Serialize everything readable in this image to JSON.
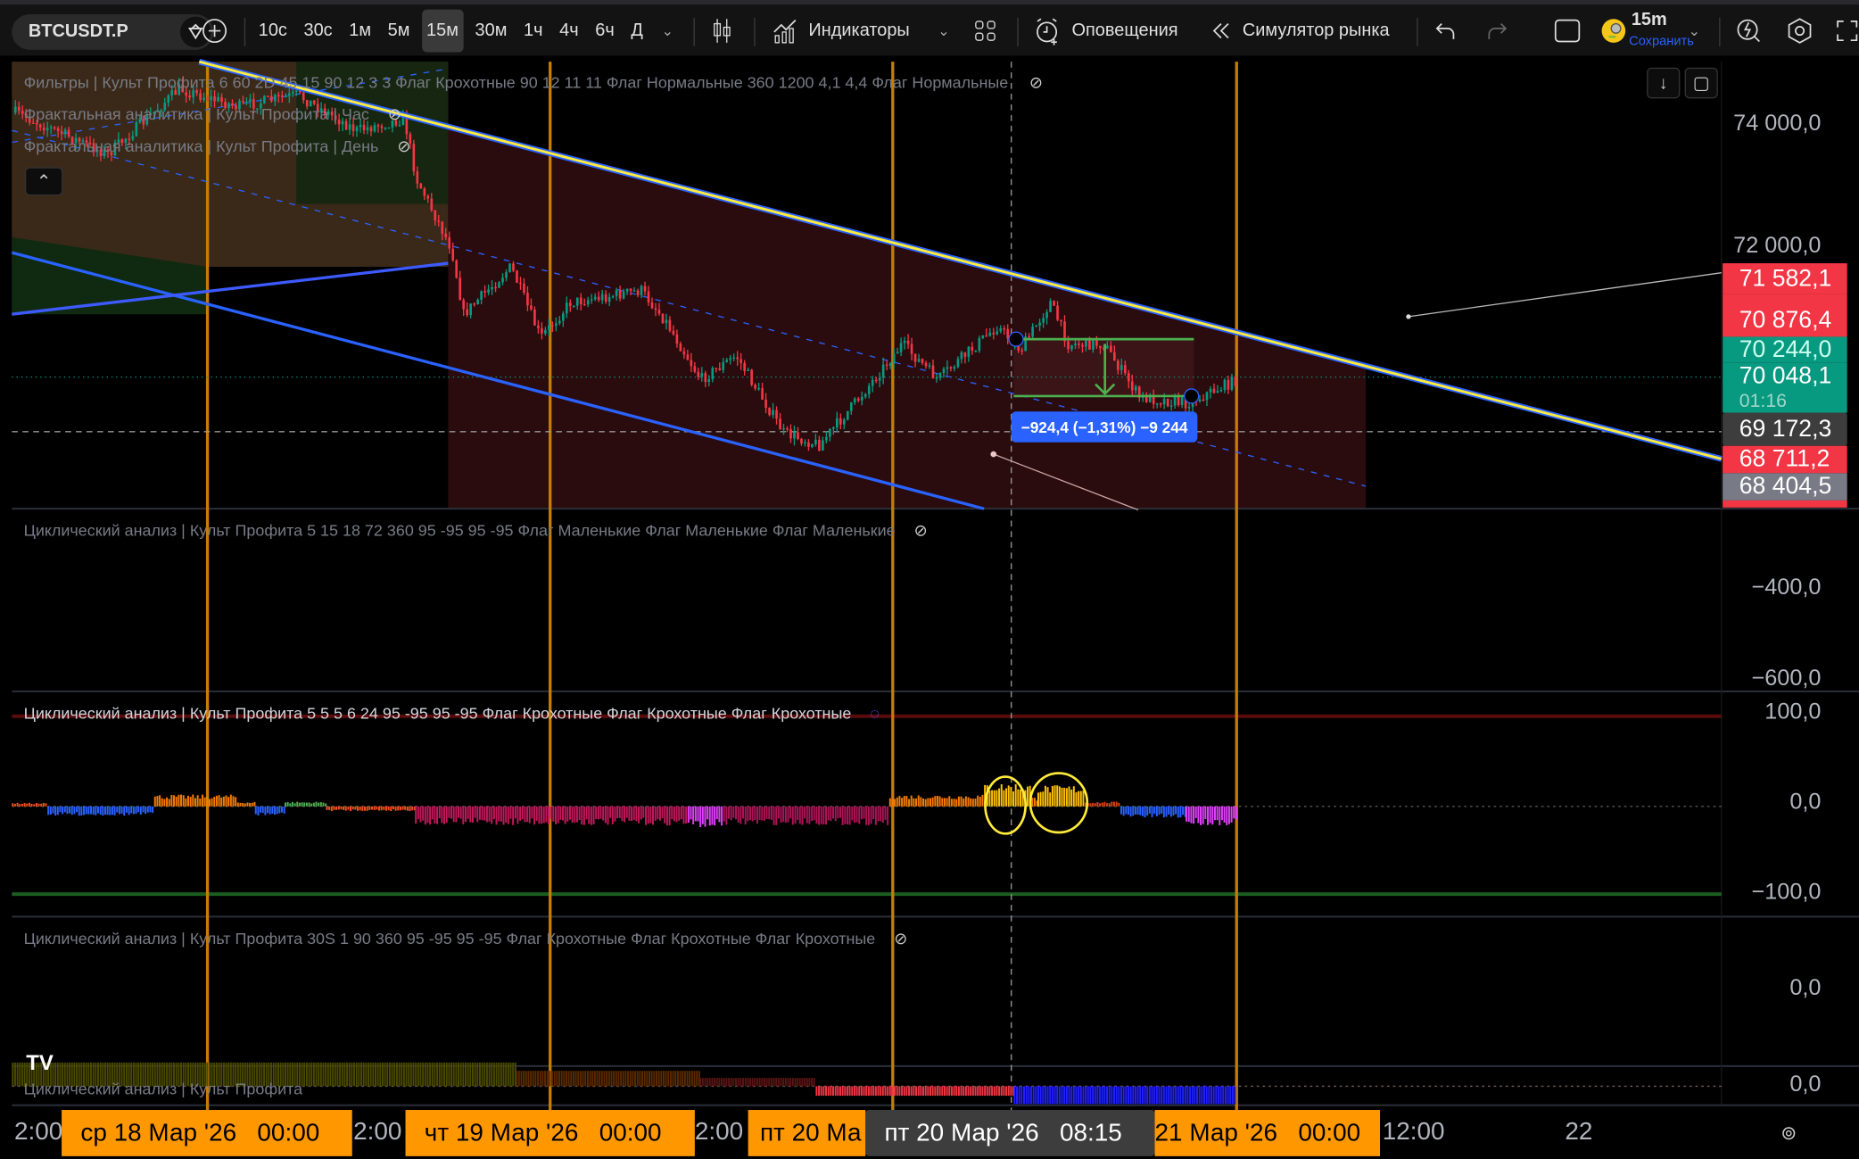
{
  "toolbar": {
    "symbol": "BTCUSDT.P",
    "timeframes": [
      "10с",
      "30с",
      "1м",
      "5м",
      "15м",
      "30м",
      "1ч",
      "4ч",
      "6ч",
      "Д"
    ],
    "active_timeframe": "15м",
    "indicators_label": "Индикаторы",
    "alerts_label": "Оповещения",
    "simulator_label": "Симулятор рынка",
    "layout_name": "15m",
    "save_label": "Сохранить"
  },
  "legends": {
    "main1": "Фильтры | Культ Профита 6 60 2D 45 15 90 12 3 3 Флаг Крохотные 90 12 11 11 Флаг Нормальные 360 1200 4,1 4,4 Флаг Нормальные",
    "main2": "Фрактальная аналитика | Культ Профита | Час",
    "main3": "Фрактальная аналитика | Культ Профита | День",
    "pane2": "Циклический анализ | Культ Профита 5 15 18 72 360 95 -95 95 -95 Флаг Маленькие Флаг Маленькие Флаг Маленькие",
    "pane3": "Циклический анализ | Культ Профита 5 5 5 6 24 95 -95 95 -95 Флаг Крохотные Флаг Крохотные Флаг Крохотные",
    "pane4": "Циклический анализ | Культ Профита 30S 1 90 360 95 -95 95 -95 Флаг Крохотные Флаг Крохотные Флаг Крохотные",
    "pane5": "Циклический анализ | Культ Профита"
  },
  "price_axis": {
    "ticks": [
      "74 000,0",
      "72 000,0"
    ],
    "labels": [
      {
        "value": "71 582,1",
        "color": "#f23645"
      },
      {
        "value": "70 876,4",
        "color": "#f23645"
      },
      {
        "value": "70 244,0",
        "color": "#089981"
      },
      {
        "value": "70 048,1",
        "color": "#089981",
        "countdown": "01:16"
      },
      {
        "value": "69 172,3",
        "color": "#3d3d3d"
      },
      {
        "value": "68 711,2",
        "color": "#f23645"
      },
      {
        "value": "68 404,5",
        "color": "#787b86"
      }
    ]
  },
  "measure_label": "−924,4 (−1,31%) −9 244",
  "pane2_axis": [
    "−400,0",
    "−600,0"
  ],
  "pane3_axis": [
    "100,0",
    "0,0",
    "−100,0"
  ],
  "pane4_axis": [
    "0,0"
  ],
  "pane5_axis": [
    "0,0"
  ],
  "time_axis": {
    "plain": [
      "2:00",
      "12:00",
      "22"
    ],
    "highlighted": [
      "ср 18 Мар '26   00:00",
      "чт 19 Мар '26   00:00",
      "пт 20 Ма",
      "21 Мар '26   00:00"
    ],
    "crosshair": "пт 20 Мар '26   08:15",
    "partials": [
      "2:00",
      "2:00"
    ]
  },
  "colors": {
    "up": "#089981",
    "down": "#f23645",
    "trend": "#ffeb3b",
    "channel": "#2962ff",
    "vertical": "#c77c02",
    "time_highlight": "#ff9800"
  }
}
